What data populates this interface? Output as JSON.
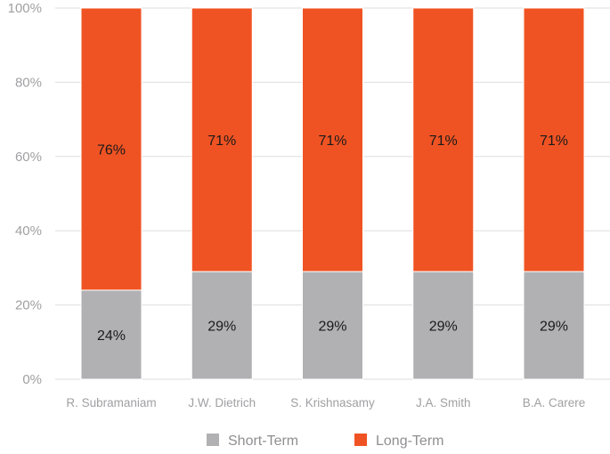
{
  "chart_data": {
    "type": "bar",
    "stacked": true,
    "categories": [
      "R. Subramaniam",
      "J.W. Dietrich",
      "S. Krishnasamy",
      "J.A. Smith",
      "B.A. Carere"
    ],
    "series": [
      {
        "name": "Short-Term",
        "values": [
          24,
          29,
          29,
          29,
          29
        ],
        "labels": [
          "24%",
          "29%",
          "29%",
          "29%",
          "29%"
        ],
        "color": "#b1b1b4"
      },
      {
        "name": "Long-Term",
        "values": [
          76,
          71,
          71,
          71,
          71
        ],
        "labels": [
          "76%",
          "71%",
          "71%",
          "71%",
          "71%"
        ],
        "color": "#f05323"
      }
    ],
    "yticks": [
      0,
      20,
      40,
      60,
      80,
      100
    ],
    "ytick_labels": [
      "0%",
      "20%",
      "40%",
      "60%",
      "80%",
      "100%"
    ],
    "ylim": [
      0,
      100
    ],
    "grid": true,
    "legend_position": "bottom-center"
  }
}
